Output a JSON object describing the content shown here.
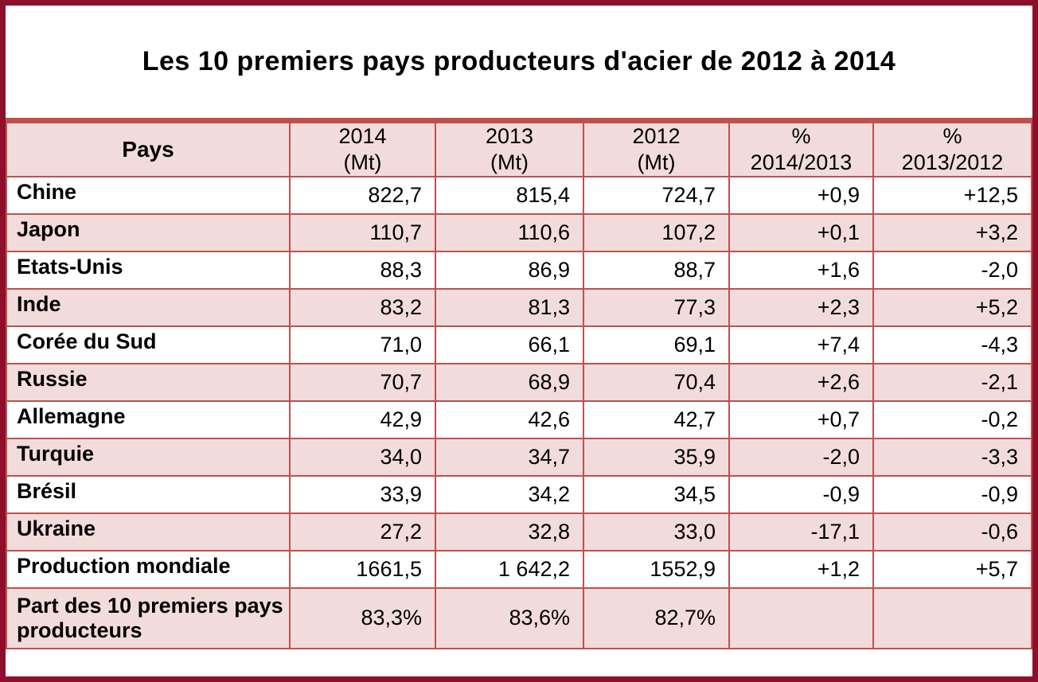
{
  "title": "Les 10 premiers pays producteurs d'acier de 2012 à 2014",
  "colors": {
    "frame": "#8E0F2B",
    "grid": "#C0504D",
    "band_fill": "#F2DCDB",
    "text": "#000000",
    "background": "#FFFFFF"
  },
  "header": {
    "pays": "Pays",
    "y2014": {
      "line1": "2014",
      "line2": "(Mt)"
    },
    "y2013": {
      "line1": "2013",
      "line2": "(Mt)"
    },
    "y2012": {
      "line1": "2012",
      "line2": "(Mt)"
    },
    "pct_2014_2013": {
      "line1": "%",
      "line2": "2014/2013"
    },
    "pct_2013_2012": {
      "line1": "%",
      "line2": "2013/2012"
    }
  },
  "chart_data": {
    "type": "table",
    "title": "Les 10 premiers pays producteurs d'acier de 2012 à 2014",
    "columns": [
      "Pays",
      "2014 (Mt)",
      "2013 (Mt)",
      "2012 (Mt)",
      "% 2014/2013",
      "% 2013/2012"
    ],
    "rows": [
      [
        "Chine",
        "822,7",
        "815,4",
        "724,7",
        "+0,9",
        "+12,5"
      ],
      [
        "Japon",
        "110,7",
        "110,6",
        "107,2",
        "+0,1",
        "+3,2"
      ],
      [
        "Etats-Unis",
        "88,3",
        "86,9",
        "88,7",
        "+1,6",
        "-2,0"
      ],
      [
        "Inde",
        "83,2",
        "81,3",
        "77,3",
        "+2,3",
        "+5,2"
      ],
      [
        "Corée du Sud",
        "71,0",
        "66,1",
        "69,1",
        "+7,4",
        "-4,3"
      ],
      [
        "Russie",
        "70,7",
        "68,9",
        "70,4",
        "+2,6",
        "-2,1"
      ],
      [
        "Allemagne",
        "42,9",
        "42,6",
        "42,7",
        "+0,7",
        "-0,2"
      ],
      [
        "Turquie",
        "34,0",
        "34,7",
        "35,9",
        "-2,0",
        "-3,3"
      ],
      [
        "Brésil",
        "33,9",
        "34,2",
        "34,5",
        "-0,9",
        "-0,9"
      ],
      [
        "Ukraine",
        "27,2",
        "32,8",
        "33,0",
        "-17,1",
        "-0,6"
      ],
      [
        "Production mondiale",
        "1661,5",
        "1 642,2",
        "1552,9",
        "+1,2",
        "+5,7"
      ],
      [
        "Part des 10 premiers pays producteurs",
        "83,3%",
        "83,6%",
        "82,7%",
        "",
        ""
      ]
    ]
  }
}
